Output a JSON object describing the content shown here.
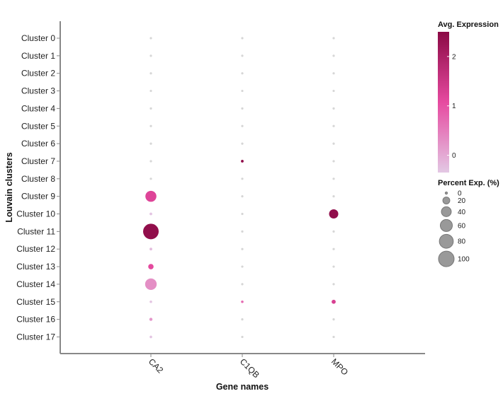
{
  "chart_data": {
    "type": "scatter",
    "subtype": "dot-plot",
    "xlabel": "Gene names",
    "ylabel": "Louvain clusters",
    "genes": [
      "CA2",
      "C1QB",
      "MPO"
    ],
    "clusters": [
      "Cluster 0",
      "Cluster 1",
      "Cluster 2",
      "Cluster 3",
      "Cluster 4",
      "Cluster 5",
      "Cluster 6",
      "Cluster 7",
      "Cluster 8",
      "Cluster 9",
      "Cluster 10",
      "Cluster 11",
      "Cluster 12",
      "Cluster 13",
      "Cluster 14",
      "Cluster 15",
      "Cluster 16",
      "Cluster 17"
    ],
    "points": [
      {
        "gene": "CA2",
        "cluster": "Cluster 0",
        "pct": 0,
        "avg": -0.3
      },
      {
        "gene": "CA2",
        "cluster": "Cluster 1",
        "pct": 0,
        "avg": -0.3
      },
      {
        "gene": "CA2",
        "cluster": "Cluster 2",
        "pct": 0,
        "avg": -0.3
      },
      {
        "gene": "CA2",
        "cluster": "Cluster 3",
        "pct": 0,
        "avg": -0.3
      },
      {
        "gene": "CA2",
        "cluster": "Cluster 4",
        "pct": 0,
        "avg": -0.3
      },
      {
        "gene": "CA2",
        "cluster": "Cluster 5",
        "pct": 0,
        "avg": -0.3
      },
      {
        "gene": "CA2",
        "cluster": "Cluster 6",
        "pct": 0,
        "avg": -0.3
      },
      {
        "gene": "CA2",
        "cluster": "Cluster 7",
        "pct": 0,
        "avg": -0.3
      },
      {
        "gene": "CA2",
        "cluster": "Cluster 8",
        "pct": 0,
        "avg": -0.3
      },
      {
        "gene": "CA2",
        "cluster": "Cluster 9",
        "pct": 50,
        "avg": 1.2
      },
      {
        "gene": "CA2",
        "cluster": "Cluster 10",
        "pct": 3,
        "avg": -0.3
      },
      {
        "gene": "CA2",
        "cluster": "Cluster 11",
        "pct": 100,
        "avg": 2.4
      },
      {
        "gene": "CA2",
        "cluster": "Cluster 12",
        "pct": 3,
        "avg": -0.2
      },
      {
        "gene": "CA2",
        "cluster": "Cluster 13",
        "pct": 12,
        "avg": 1.1
      },
      {
        "gene": "CA2",
        "cluster": "Cluster 14",
        "pct": 55,
        "avg": 0.3
      },
      {
        "gene": "CA2",
        "cluster": "Cluster 15",
        "pct": 2,
        "avg": -0.3
      },
      {
        "gene": "CA2",
        "cluster": "Cluster 16",
        "pct": 4,
        "avg": 0.2
      },
      {
        "gene": "CA2",
        "cluster": "Cluster 17",
        "pct": 2,
        "avg": -0.3
      },
      {
        "gene": "C1QB",
        "cluster": "Cluster 0",
        "pct": 0,
        "avg": -0.3
      },
      {
        "gene": "C1QB",
        "cluster": "Cluster 1",
        "pct": 0,
        "avg": -0.3
      },
      {
        "gene": "C1QB",
        "cluster": "Cluster 2",
        "pct": 0,
        "avg": -0.3
      },
      {
        "gene": "C1QB",
        "cluster": "Cluster 3",
        "pct": 0,
        "avg": -0.3
      },
      {
        "gene": "C1QB",
        "cluster": "Cluster 4",
        "pct": 0,
        "avg": -0.3
      },
      {
        "gene": "C1QB",
        "cluster": "Cluster 5",
        "pct": 0,
        "avg": -0.3
      },
      {
        "gene": "C1QB",
        "cluster": "Cluster 6",
        "pct": 0,
        "avg": -0.3
      },
      {
        "gene": "C1QB",
        "cluster": "Cluster 7",
        "pct": 3,
        "avg": 2.4
      },
      {
        "gene": "C1QB",
        "cluster": "Cluster 8",
        "pct": 0,
        "avg": -0.3
      },
      {
        "gene": "C1QB",
        "cluster": "Cluster 9",
        "pct": 0,
        "avg": -0.3
      },
      {
        "gene": "C1QB",
        "cluster": "Cluster 10",
        "pct": 0,
        "avg": -0.3
      },
      {
        "gene": "C1QB",
        "cluster": "Cluster 11",
        "pct": 0,
        "avg": -0.3
      },
      {
        "gene": "C1QB",
        "cluster": "Cluster 12",
        "pct": 0,
        "avg": -0.3
      },
      {
        "gene": "C1QB",
        "cluster": "Cluster 13",
        "pct": 0,
        "avg": -0.3
      },
      {
        "gene": "C1QB",
        "cluster": "Cluster 14",
        "pct": 0,
        "avg": -0.3
      },
      {
        "gene": "C1QB",
        "cluster": "Cluster 15",
        "pct": 1,
        "avg": 0.7
      },
      {
        "gene": "C1QB",
        "cluster": "Cluster 16",
        "pct": 0,
        "avg": -0.3
      },
      {
        "gene": "C1QB",
        "cluster": "Cluster 17",
        "pct": 0,
        "avg": -0.3
      },
      {
        "gene": "MPO",
        "cluster": "Cluster 0",
        "pct": 0,
        "avg": -0.3
      },
      {
        "gene": "MPO",
        "cluster": "Cluster 1",
        "pct": 0,
        "avg": -0.3
      },
      {
        "gene": "MPO",
        "cluster": "Cluster 2",
        "pct": 0,
        "avg": -0.3
      },
      {
        "gene": "MPO",
        "cluster": "Cluster 3",
        "pct": 0,
        "avg": -0.3
      },
      {
        "gene": "MPO",
        "cluster": "Cluster 4",
        "pct": 0,
        "avg": -0.3
      },
      {
        "gene": "MPO",
        "cluster": "Cluster 5",
        "pct": 0,
        "avg": -0.3
      },
      {
        "gene": "MPO",
        "cluster": "Cluster 6",
        "pct": 0,
        "avg": -0.3
      },
      {
        "gene": "MPO",
        "cluster": "Cluster 7",
        "pct": 0,
        "avg": -0.3
      },
      {
        "gene": "MPO",
        "cluster": "Cluster 8",
        "pct": 0,
        "avg": -0.3
      },
      {
        "gene": "MPO",
        "cluster": "Cluster 9",
        "pct": 0,
        "avg": -0.3
      },
      {
        "gene": "MPO",
        "cluster": "Cluster 10",
        "pct": 35,
        "avg": 2.4
      },
      {
        "gene": "MPO",
        "cluster": "Cluster 11",
        "pct": 0,
        "avg": -0.3
      },
      {
        "gene": "MPO",
        "cluster": "Cluster 12",
        "pct": 0,
        "avg": -0.3
      },
      {
        "gene": "MPO",
        "cluster": "Cluster 13",
        "pct": 0,
        "avg": -0.3
      },
      {
        "gene": "MPO",
        "cluster": "Cluster 14",
        "pct": 0,
        "avg": -0.3
      },
      {
        "gene": "MPO",
        "cluster": "Cluster 15",
        "pct": 7,
        "avg": 1.3
      },
      {
        "gene": "MPO",
        "cluster": "Cluster 16",
        "pct": 0,
        "avg": -0.3
      },
      {
        "gene": "MPO",
        "cluster": "Cluster 17",
        "pct": 0,
        "avg": -0.3
      }
    ],
    "color_legend": {
      "title": "Avg. Expression",
      "min": -0.35,
      "max": 2.5,
      "ticks": [
        "0",
        "1",
        "2"
      ],
      "low_color": "#e3c8e4",
      "mid_color": "#e64aa0",
      "high_color": "#8b0a45"
    },
    "size_legend": {
      "title": "Percent Exp. (%)",
      "values": [
        0,
        20,
        40,
        60,
        80,
        100
      ],
      "labels": [
        "0",
        "20",
        "40",
        "60",
        "80",
        "100"
      ],
      "fill": "#999999",
      "stroke": "#777777"
    },
    "zero_dot_color": "#d6d6d6",
    "axis_color": "#888888",
    "grid": false,
    "legend_position": "right"
  }
}
